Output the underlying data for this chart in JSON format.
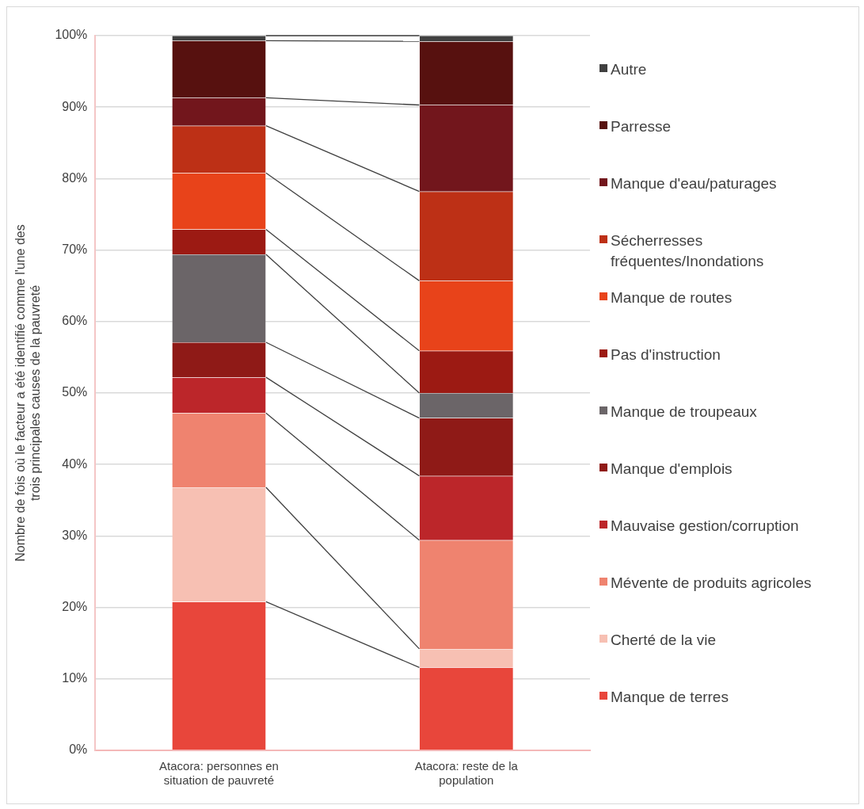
{
  "chart_data": {
    "type": "bar",
    "stacked": true,
    "ylabel": "Nombre de fois où le facteur a été identifié comme l'une des trois principales causes de la pauvreté",
    "categories": [
      "Atacora: personnes en situation de pauvreté",
      "Atacora: reste de la population"
    ],
    "series": [
      {
        "name": "Manque de terres",
        "color": "#e8463b",
        "values": [
          20.8,
          11.6
        ]
      },
      {
        "name": "Cherté de la vie",
        "color": "#f7c0b3",
        "values": [
          16.0,
          2.6
        ]
      },
      {
        "name": "Mévente de produits agricoles",
        "color": "#ef836f",
        "values": [
          10.4,
          15.2
        ]
      },
      {
        "name": "Mauvaise gestion/corruption",
        "color": "#bc262a",
        "values": [
          5.0,
          9.0
        ]
      },
      {
        "name": "Manque d'emplois",
        "color": "#8f1a17",
        "values": [
          4.9,
          8.1
        ]
      },
      {
        "name": "Manque de troupeaux",
        "color": "#6b6568",
        "values": [
          12.3,
          3.5
        ]
      },
      {
        "name": "Pas d'instruction",
        "color": "#9c1a13",
        "values": [
          3.5,
          5.9
        ]
      },
      {
        "name": "Manque de routes",
        "color": "#e8431a",
        "values": [
          7.9,
          9.8
        ]
      },
      {
        "name": "Sécherresses fréquentes/Inondations",
        "color": "#bd3016",
        "values": [
          6.6,
          12.5
        ]
      },
      {
        "name": "Manque d'eau/paturages",
        "color": "#72161c",
        "values": [
          3.9,
          12.1
        ]
      },
      {
        "name": "Parresse",
        "color": "#57110f",
        "values": [
          8.0,
          8.9
        ]
      },
      {
        "name": "Autre",
        "color": "#404040",
        "values": [
          0.7,
          0.8
        ]
      }
    ],
    "ylim": [
      0,
      100
    ],
    "yticks": [
      {
        "value": 0,
        "label": "0%"
      },
      {
        "value": 10,
        "label": "10%"
      },
      {
        "value": 20,
        "label": "20%"
      },
      {
        "value": 30,
        "label": "30%"
      },
      {
        "value": 40,
        "label": "40%"
      },
      {
        "value": 50,
        "label": "50%"
      },
      {
        "value": 60,
        "label": "60%"
      },
      {
        "value": 70,
        "label": "70%"
      },
      {
        "value": 80,
        "label": "80%"
      },
      {
        "value": 90,
        "label": "90%"
      },
      {
        "value": 100,
        "label": "100%"
      }
    ],
    "grid": "y",
    "legend": "right"
  }
}
